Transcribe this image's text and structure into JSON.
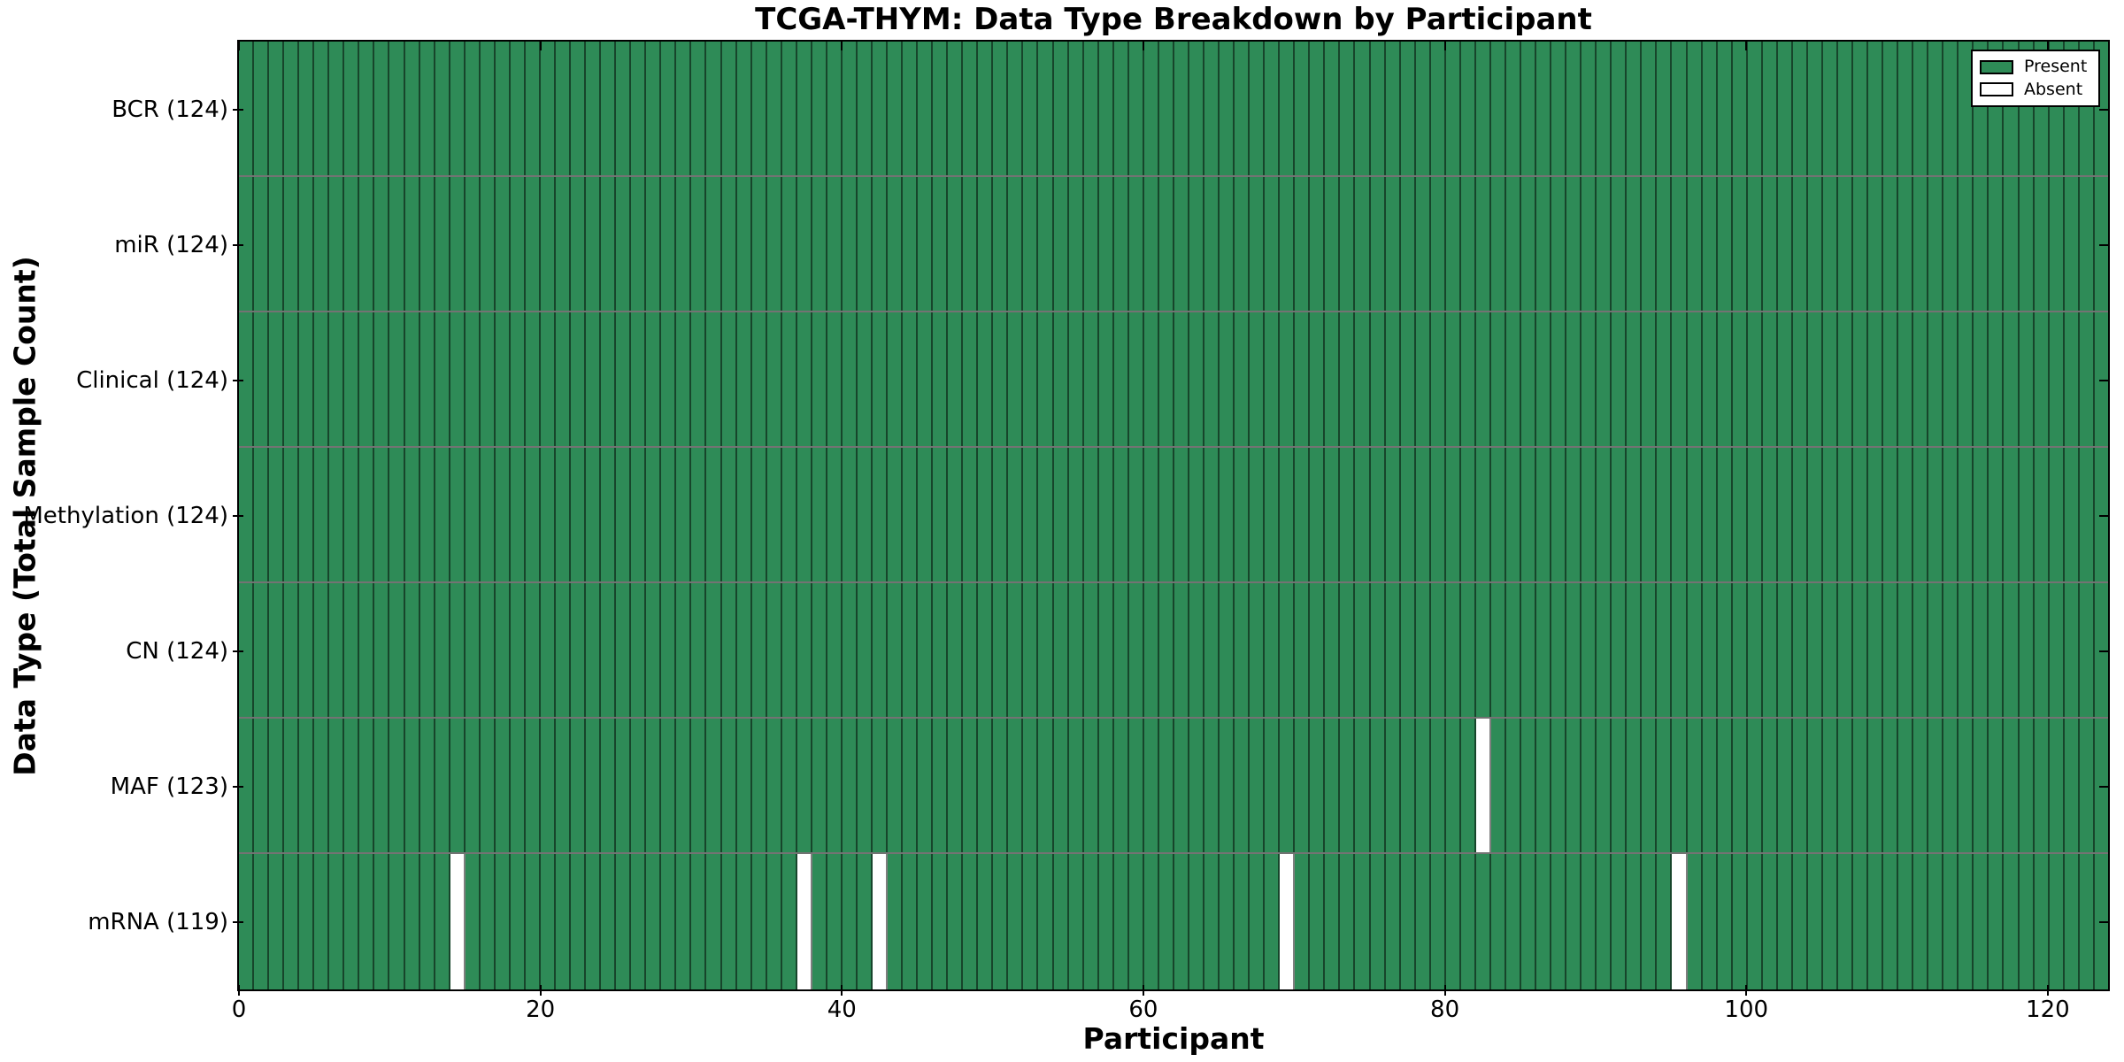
{
  "title": "TCGA-THYM: Data Type Breakdown by Participant",
  "chart_data": {
    "type": "heatmap",
    "title": "TCGA-THYM: Data Type Breakdown by Participant",
    "xlabel": "Participant",
    "ylabel": "Data Type (Total Sample Count)",
    "x_ticks": [
      0,
      20,
      40,
      60,
      80,
      100,
      120
    ],
    "x_range": [
      0,
      124
    ],
    "n_participants": 124,
    "grid": "per-participant cell borders, black row separators",
    "legend_position": "upper right",
    "rows": [
      {
        "label": "BCR",
        "total": 124,
        "tick_label": "BCR (124)",
        "absent_participants": []
      },
      {
        "label": "miR",
        "total": 124,
        "tick_label": "miR (124)",
        "absent_participants": []
      },
      {
        "label": "Clinical",
        "total": 124,
        "tick_label": "Clinical (124)",
        "absent_participants": []
      },
      {
        "label": "Methylation",
        "total": 124,
        "tick_label": "Methylation (124)",
        "absent_participants": []
      },
      {
        "label": "CN",
        "total": 124,
        "tick_label": "CN (124)",
        "absent_participants": []
      },
      {
        "label": "MAF",
        "total": 123,
        "tick_label": "MAF (123)",
        "absent_participants": [
          82
        ]
      },
      {
        "label": "mRNA",
        "total": 119,
        "tick_label": "mRNA (119)",
        "absent_participants": [
          14,
          37,
          42,
          69,
          95
        ]
      }
    ],
    "legend": {
      "entries": [
        {
          "label": "Present",
          "color": "#2e8b57"
        },
        {
          "label": "Absent",
          "color": "#ffffff"
        }
      ]
    },
    "colors": {
      "present": "#2e8b57",
      "absent": "#ffffff",
      "cell_edge": "rgba(0,0,0,0.5)",
      "spine": "#000000"
    }
  }
}
